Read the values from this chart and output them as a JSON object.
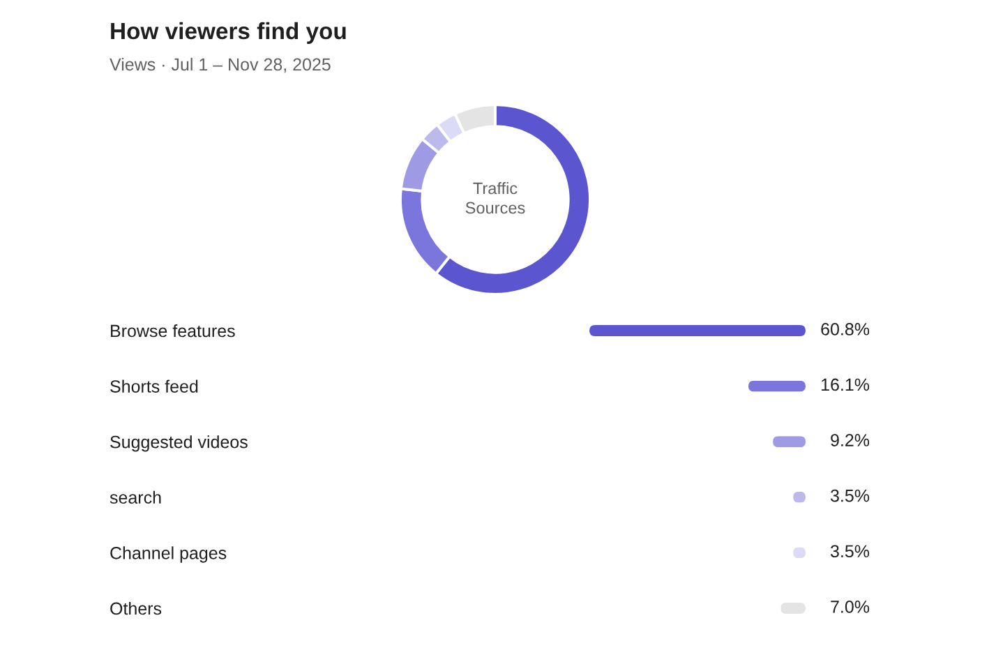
{
  "chart_data": [
    {
      "type": "donut",
      "title": "How viewers find you",
      "subtitle": "Views · Jul 1 – Nov 28, 2025",
      "categories": [
        null,
        null,
        null,
        null,
        null,
        null
      ],
      "values": [
        60.8,
        16.1,
        9.2,
        3.5,
        3.5,
        7.0
      ],
      "colors": [
        "#5b55d0",
        "#7a76dc",
        "#9e9ae4",
        "#bcb9ec",
        "#dcdbf6",
        "#e4e4e4"
      ],
      "annotations": [
        "Traffic Sources"
      ]
    },
    {
      "type": "bar",
      "orientation": "horizontal",
      "categories": [
        "Browse features",
        "Shorts feed",
        "Suggested videos",
        "search",
        "Channel pages",
        "Others"
      ],
      "values": [
        60.8,
        16.1,
        9.2,
        3.5,
        3.5,
        7.0
      ],
      "colors": [
        "#5b55d0",
        "#7a76dc",
        "#9e9ae4",
        "#bcb9ec",
        "#dcdbf6",
        "#e4e4e4"
      ],
      "value_labels": [
        "60.8%",
        "16.1%",
        "9.2%",
        "3.5%",
        "3.5%",
        "7.0%"
      ],
      "tick_labels": "y",
      "legend": false,
      "grid": false
    }
  ]
}
